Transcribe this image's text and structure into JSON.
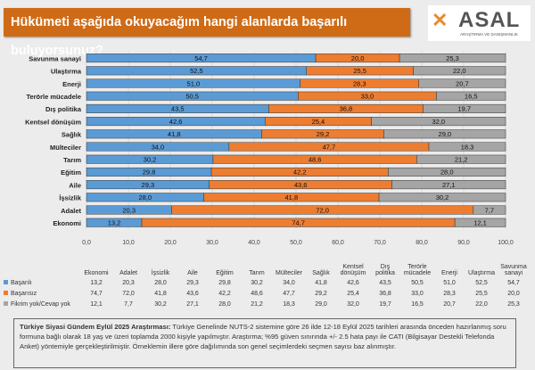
{
  "title": "Hükümeti aşağıda okuyacağım hangi alanlarda başarılı buluyorsunuz?",
  "logo": {
    "name": "ASAL",
    "sub": "ARAŞTIRMA VE DANIŞMANLIK"
  },
  "chart_data": {
    "type": "bar",
    "orientation": "horizontal-stacked-100",
    "categories": [
      "Ekonomi",
      "Adalet",
      "İşsizlik",
      "Aile",
      "Eğitim",
      "Tarım",
      "Mülteciler",
      "Sağlık",
      "Kentsel dönüşüm",
      "Dış politika",
      "Terörle mücadele",
      "Enerji",
      "Ulaştırma",
      "Savunma sanayi"
    ],
    "series": [
      {
        "name": "Başarılı",
        "color": "#5b9bd5",
        "values": [
          13.2,
          20.3,
          28.0,
          29.3,
          29.8,
          30.2,
          34.0,
          41.8,
          42.6,
          43.5,
          50.5,
          51.0,
          52.5,
          54.7
        ]
      },
      {
        "name": "Başarısız",
        "color": "#ed7d31",
        "values": [
          74.7,
          72.0,
          41.8,
          43.6,
          42.2,
          48.6,
          47.7,
          29.2,
          25.4,
          36.8,
          33.0,
          28.3,
          25.5,
          20.0
        ]
      },
      {
        "name": "Fikrim yok/Cevap yok",
        "color": "#a5a5a5",
        "values": [
          12.1,
          7.7,
          30.2,
          27.1,
          28.0,
          21.2,
          18.3,
          29.0,
          32.0,
          19.7,
          16.5,
          20.7,
          22.0,
          25.3
        ]
      }
    ],
    "xlim": [
      0,
      100
    ],
    "xticks": [
      "0,0",
      "10,0",
      "20,0",
      "30,0",
      "40,0",
      "50,0",
      "60,0",
      "70,0",
      "80,0",
      "90,0",
      "100,0"
    ],
    "grid": true,
    "data_table": true
  },
  "note": {
    "bold": "Türkiye Siyasi Gündem Eylül 2025 Araştırması:",
    "text": " Türkiye Genelinde NUTS-2 sistemine göre 26 ilde 12-18 Eylül 2025 tarihleri arasında önceden hazırlanmış soru formuna bağlı olarak 18 yaş ve üzeri toplamda 2000 kişiyle yapılmıştır. Araştırma; %95 güven sınırında +/- 2.5 hata payı ile CATI (Bilgisayar Destekli Telefonda Anket) yöntemiyle gerçekleştirilmiştir. Örneklemin illere göre dağılımında son genel seçimlerdeki seçmen sayısı baz alınmıştır."
  }
}
